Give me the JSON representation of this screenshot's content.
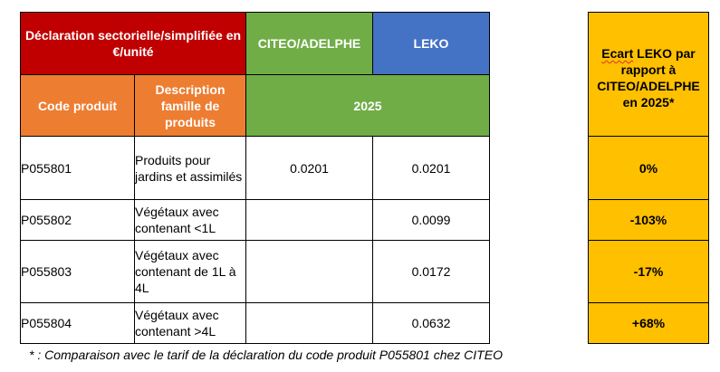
{
  "header": {
    "declaration": "Déclaration sectorielle/simplifiée en €/unité",
    "citeo": "CITEO/ADELPHE",
    "leko": "LEKO",
    "code_produit": "Code produit",
    "description": "Description famille de produits",
    "year": "2025"
  },
  "colors": {
    "red": "#c00000",
    "green": "#70ad47",
    "blue": "#4472c4",
    "orange": "#ed7d31",
    "yellow": "#ffc000"
  },
  "rows": [
    {
      "code": "P055801",
      "description": "Produits pour jardins et assimilés",
      "citeo": "0.0201",
      "leko": "0.0201",
      "ecart": "0%"
    },
    {
      "code": "P055802",
      "description": "Végétaux avec contenant <1L",
      "citeo": "",
      "leko": "0.0099",
      "ecart": "-103%"
    },
    {
      "code": "P055803",
      "description": "Végétaux avec contenant de 1L à 4L",
      "citeo": "",
      "leko": "0.0172",
      "ecart": "-17%"
    },
    {
      "code": "P055804",
      "description": "Végétaux avec contenant >4L",
      "citeo": "",
      "leko": "0.0632",
      "ecart": "+68%"
    }
  ],
  "ecart_header": {
    "word": "Ecart",
    "rest": " LEKO par rapport à CITEO/ADELPHE en 2025*"
  },
  "footnote": "* : Comparaison avec le tarif de la déclaration du code produit P055801 chez CITEO"
}
